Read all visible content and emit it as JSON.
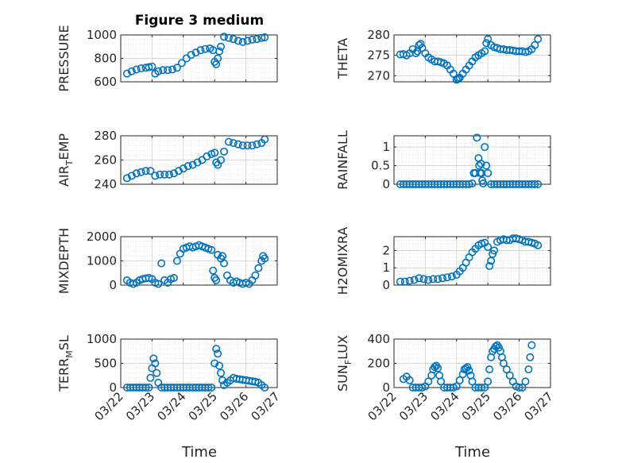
{
  "figure": {
    "title": "Figure 3 medium",
    "xlabel": "Time"
  },
  "colors": {
    "marker": "#0072BD",
    "axis": "#262626",
    "grid": "#dcdcdc"
  },
  "chart_data": [
    {
      "id": "pressure",
      "type": "scatter",
      "ylabel": "PRESSURE",
      "ylim": [
        600,
        1000
      ],
      "yticks": [
        600,
        800,
        1000
      ],
      "ytick_labels": [
        "600",
        "800",
        "1000"
      ],
      "xlim": [
        0,
        5
      ],
      "xticks": [
        0,
        1,
        2,
        3,
        4,
        5
      ],
      "x": [
        0.2,
        0.35,
        0.5,
        0.65,
        0.8,
        0.9,
        1.0,
        1.1,
        1.2,
        1.35,
        1.5,
        1.65,
        1.8,
        1.95,
        2.1,
        2.25,
        2.4,
        2.55,
        2.7,
        2.85,
        2.95,
        3.0,
        3.05,
        3.1,
        3.15,
        3.2,
        3.3,
        3.45,
        3.6,
        3.75,
        3.9,
        4.05,
        4.2,
        4.35,
        4.5,
        4.6
      ],
      "y": [
        670,
        690,
        705,
        715,
        720,
        725,
        730,
        670,
        690,
        700,
        700,
        705,
        720,
        760,
        800,
        830,
        850,
        870,
        880,
        885,
        870,
        770,
        750,
        800,
        860,
        900,
        985,
        975,
        965,
        950,
        940,
        950,
        960,
        965,
        975,
        980
      ]
    },
    {
      "id": "theta",
      "type": "scatter",
      "ylabel": "THETA",
      "ylim": [
        268.5,
        280
      ],
      "yticks": [
        270,
        275,
        280
      ],
      "ytick_labels": [
        "270",
        "275",
        "280"
      ],
      "xlim": [
        0,
        5
      ],
      "xticks": [
        0,
        1,
        2,
        3,
        4,
        5
      ],
      "x": [
        0.2,
        0.3,
        0.4,
        0.5,
        0.6,
        0.7,
        0.75,
        0.8,
        0.85,
        0.9,
        1.0,
        1.1,
        1.2,
        1.3,
        1.4,
        1.5,
        1.6,
        1.7,
        1.8,
        1.9,
        2.0,
        2.05,
        2.1,
        2.2,
        2.3,
        2.4,
        2.5,
        2.6,
        2.7,
        2.8,
        2.9,
        2.95,
        3.0,
        3.1,
        3.2,
        3.3,
        3.4,
        3.5,
        3.6,
        3.7,
        3.8,
        3.9,
        4.0,
        4.1,
        4.2,
        4.3,
        4.4,
        4.5,
        4.6
      ],
      "y": [
        275.2,
        275.3,
        275.0,
        275.5,
        276.5,
        275.5,
        276.0,
        277.5,
        277.8,
        276.8,
        275.5,
        274.5,
        274.0,
        273.5,
        273.5,
        273.3,
        273.0,
        272.5,
        271.5,
        270.5,
        269.0,
        269.2,
        269.5,
        270.5,
        271.5,
        272.5,
        273.5,
        274.5,
        275.0,
        275.5,
        276.0,
        278.0,
        279.0,
        277.5,
        277.0,
        276.8,
        276.5,
        276.5,
        276.3,
        276.3,
        276.2,
        276.0,
        276.0,
        276.0,
        275.8,
        276.0,
        276.5,
        277.5,
        279.0
      ]
    },
    {
      "id": "air_temp",
      "type": "scatter",
      "ylabel": "AIR_TEMP",
      "ylabel_parts": {
        "base": "AIR",
        "sub": "T",
        "rest": "EMP"
      },
      "ylim": [
        240,
        280
      ],
      "yticks": [
        240,
        260,
        280
      ],
      "ytick_labels": [
        "240",
        "260",
        "280"
      ],
      "xlim": [
        0,
        5
      ],
      "xticks": [
        0,
        1,
        2,
        3,
        4,
        5
      ],
      "x": [
        0.2,
        0.35,
        0.5,
        0.65,
        0.8,
        0.95,
        1.1,
        1.25,
        1.4,
        1.55,
        1.7,
        1.85,
        2.0,
        2.15,
        2.3,
        2.45,
        2.6,
        2.75,
        2.9,
        3.0,
        3.05,
        3.1,
        3.2,
        3.3,
        3.45,
        3.6,
        3.75,
        3.9,
        4.05,
        4.2,
        4.35,
        4.5,
        4.6
      ],
      "y": [
        245,
        247,
        249,
        250,
        251,
        251,
        247,
        248,
        248,
        248,
        249,
        251,
        253,
        255,
        256,
        258,
        260,
        263,
        265,
        266,
        258,
        256,
        260,
        267,
        275,
        274,
        273,
        272,
        272,
        272,
        273,
        274,
        277
      ]
    },
    {
      "id": "rainfall",
      "type": "scatter",
      "ylabel": "RAINFALL",
      "ylim": [
        0,
        1.3
      ],
      "yticks": [
        0,
        0.5,
        1
      ],
      "ytick_labels": [
        "0",
        "0.5",
        "1"
      ],
      "xlim": [
        0,
        5
      ],
      "xticks": [
        0,
        1,
        2,
        3,
        4,
        5
      ],
      "x": [
        0.2,
        0.3,
        0.4,
        0.5,
        0.6,
        0.7,
        0.8,
        0.9,
        1.0,
        1.1,
        1.2,
        1.3,
        1.4,
        1.5,
        1.6,
        1.7,
        1.8,
        1.9,
        2.0,
        2.1,
        2.2,
        2.3,
        2.4,
        2.5,
        2.55,
        2.6,
        2.65,
        2.7,
        2.72,
        2.75,
        2.78,
        2.8,
        2.82,
        2.85,
        2.9,
        2.95,
        3.0,
        3.1,
        3.2,
        3.3,
        3.4,
        3.5,
        3.6,
        3.7,
        3.8,
        3.9,
        4.0,
        4.1,
        4.2,
        4.3,
        4.4,
        4.5,
        4.6
      ],
      "y": [
        0,
        0,
        0,
        0,
        0,
        0,
        0,
        0,
        0,
        0,
        0,
        0,
        0,
        0,
        0,
        0,
        0,
        0,
        0,
        0,
        0,
        0,
        0,
        0.02,
        0.3,
        0.3,
        1.25,
        0.7,
        0.5,
        0.3,
        0.55,
        0.3,
        0.1,
        0.02,
        1.0,
        0.5,
        0.3,
        0,
        0,
        0,
        0,
        0,
        0,
        0,
        0,
        0,
        0,
        0,
        0,
        0,
        0,
        0,
        0
      ]
    },
    {
      "id": "mixdepth",
      "type": "scatter",
      "ylabel": "MIXDEPTH",
      "ylim": [
        0,
        2000
      ],
      "yticks": [
        0,
        1000,
        2000
      ],
      "ytick_labels": [
        "0",
        "1000",
        "2000"
      ],
      "xlim": [
        0,
        5
      ],
      "xticks": [
        0,
        1,
        2,
        3,
        4,
        5
      ],
      "x": [
        0.2,
        0.3,
        0.4,
        0.5,
        0.6,
        0.7,
        0.8,
        0.9,
        1.0,
        1.1,
        1.2,
        1.3,
        1.4,
        1.5,
        1.6,
        1.7,
        1.8,
        1.9,
        2.0,
        2.1,
        2.2,
        2.3,
        2.4,
        2.5,
        2.6,
        2.7,
        2.8,
        2.9,
        2.95,
        3.0,
        3.05,
        3.1,
        3.2,
        3.25,
        3.3,
        3.4,
        3.5,
        3.6,
        3.7,
        3.8,
        3.9,
        4.0,
        4.1,
        4.2,
        4.3,
        4.4,
        4.5,
        4.55,
        4.6
      ],
      "y": [
        200,
        100,
        50,
        100,
        200,
        250,
        280,
        300,
        250,
        100,
        50,
        900,
        200,
        100,
        250,
        300,
        1000,
        1300,
        1500,
        1550,
        1600,
        1550,
        1600,
        1650,
        1600,
        1550,
        1500,
        1450,
        600,
        300,
        200,
        1250,
        1100,
        1200,
        900,
        400,
        200,
        100,
        150,
        100,
        50,
        100,
        50,
        200,
        400,
        700,
        1000,
        1200,
        1100
      ]
    },
    {
      "id": "h2omixra",
      "type": "scatter",
      "ylabel": "H2OMIXRA",
      "ylim": [
        0,
        2.8
      ],
      "yticks": [
        0,
        1,
        2
      ],
      "ytick_labels": [
        "0",
        "1",
        "2"
      ],
      "xlim": [
        0,
        5
      ],
      "xticks": [
        0,
        1,
        2,
        3,
        4,
        5
      ],
      "x": [
        0.2,
        0.35,
        0.5,
        0.65,
        0.8,
        0.95,
        1.1,
        1.25,
        1.4,
        1.55,
        1.7,
        1.85,
        2.0,
        2.1,
        2.2,
        2.3,
        2.4,
        2.5,
        2.6,
        2.7,
        2.8,
        2.9,
        3.0,
        3.05,
        3.1,
        3.15,
        3.2,
        3.3,
        3.4,
        3.5,
        3.6,
        3.7,
        3.8,
        3.9,
        4.0,
        4.1,
        4.2,
        4.3,
        4.4,
        4.5,
        4.6
      ],
      "y": [
        0.2,
        0.2,
        0.25,
        0.3,
        0.4,
        0.35,
        0.3,
        0.35,
        0.35,
        0.4,
        0.45,
        0.5,
        0.6,
        0.8,
        1.0,
        1.3,
        1.6,
        1.9,
        2.1,
        2.3,
        2.4,
        2.45,
        2.2,
        1.1,
        1.4,
        1.8,
        2.0,
        2.5,
        2.6,
        2.65,
        2.6,
        2.6,
        2.7,
        2.7,
        2.65,
        2.6,
        2.5,
        2.5,
        2.45,
        2.4,
        2.3
      ]
    },
    {
      "id": "terr_msl",
      "type": "scatter",
      "ylabel": "TERR_MSL",
      "ylabel_parts": {
        "base": "TERR",
        "sub": "M",
        "rest": "SL"
      },
      "ylim": [
        0,
        1000
      ],
      "yticks": [
        0,
        500,
        1000
      ],
      "ytick_labels": [
        "0",
        "500",
        "1000"
      ],
      "xlim": [
        0,
        5
      ],
      "xticks": [
        0,
        1,
        2,
        3,
        4,
        5
      ],
      "x": [
        0.2,
        0.3,
        0.4,
        0.5,
        0.6,
        0.7,
        0.8,
        0.9,
        0.95,
        1.0,
        1.05,
        1.1,
        1.15,
        1.2,
        1.3,
        1.4,
        1.5,
        1.6,
        1.7,
        1.8,
        1.9,
        2.0,
        2.1,
        2.2,
        2.3,
        2.4,
        2.5,
        2.6,
        2.7,
        2.8,
        2.9,
        3.0,
        3.05,
        3.1,
        3.15,
        3.2,
        3.25,
        3.3,
        3.4,
        3.5,
        3.6,
        3.7,
        3.8,
        3.9,
        4.0,
        4.1,
        4.2,
        4.3,
        4.4,
        4.5,
        4.6
      ],
      "y": [
        0,
        0,
        0,
        0,
        0,
        0,
        0,
        0,
        200,
        400,
        600,
        500,
        300,
        100,
        0,
        0,
        0,
        0,
        0,
        0,
        0,
        0,
        0,
        0,
        0,
        0,
        0,
        0,
        0,
        0,
        0,
        500,
        800,
        700,
        450,
        300,
        150,
        50,
        100,
        150,
        200,
        180,
        170,
        160,
        150,
        140,
        130,
        120,
        100,
        50,
        0
      ]
    },
    {
      "id": "sun_flux",
      "type": "scatter",
      "ylabel": "SUN_FLUX",
      "ylabel_parts": {
        "base": "SUN",
        "sub": "F",
        "rest": "LUX"
      },
      "ylim": [
        0,
        400
      ],
      "yticks": [
        0,
        200,
        400
      ],
      "ytick_labels": [
        "0",
        "200",
        "400"
      ],
      "xlim": [
        0,
        5
      ],
      "xticks": [
        0,
        1,
        2,
        3,
        4,
        5
      ],
      "x": [
        0.3,
        0.4,
        0.5,
        0.6,
        0.7,
        0.8,
        0.9,
        1.0,
        1.1,
        1.2,
        1.25,
        1.3,
        1.35,
        1.4,
        1.45,
        1.5,
        1.6,
        1.7,
        1.8,
        1.9,
        2.0,
        2.1,
        2.2,
        2.25,
        2.3,
        2.35,
        2.4,
        2.45,
        2.5,
        2.6,
        2.7,
        2.8,
        2.9,
        3.0,
        3.05,
        3.1,
        3.15,
        3.2,
        3.25,
        3.3,
        3.35,
        3.4,
        3.45,
        3.5,
        3.6,
        3.7,
        3.8,
        3.9,
        4.0,
        4.1,
        4.2,
        4.3,
        4.35,
        4.4
      ],
      "y": [
        70,
        90,
        60,
        0,
        0,
        0,
        0,
        10,
        50,
        100,
        150,
        170,
        180,
        160,
        100,
        50,
        0,
        0,
        0,
        0,
        10,
        60,
        110,
        150,
        160,
        170,
        140,
        100,
        50,
        0,
        0,
        0,
        0,
        50,
        150,
        250,
        300,
        320,
        340,
        350,
        330,
        300,
        250,
        200,
        150,
        100,
        50,
        10,
        0,
        0,
        50,
        150,
        250,
        350
      ]
    }
  ],
  "xtick_labels": [
    "03/22",
    "03/23",
    "03/24",
    "03/25",
    "03/26",
    "03/27"
  ]
}
